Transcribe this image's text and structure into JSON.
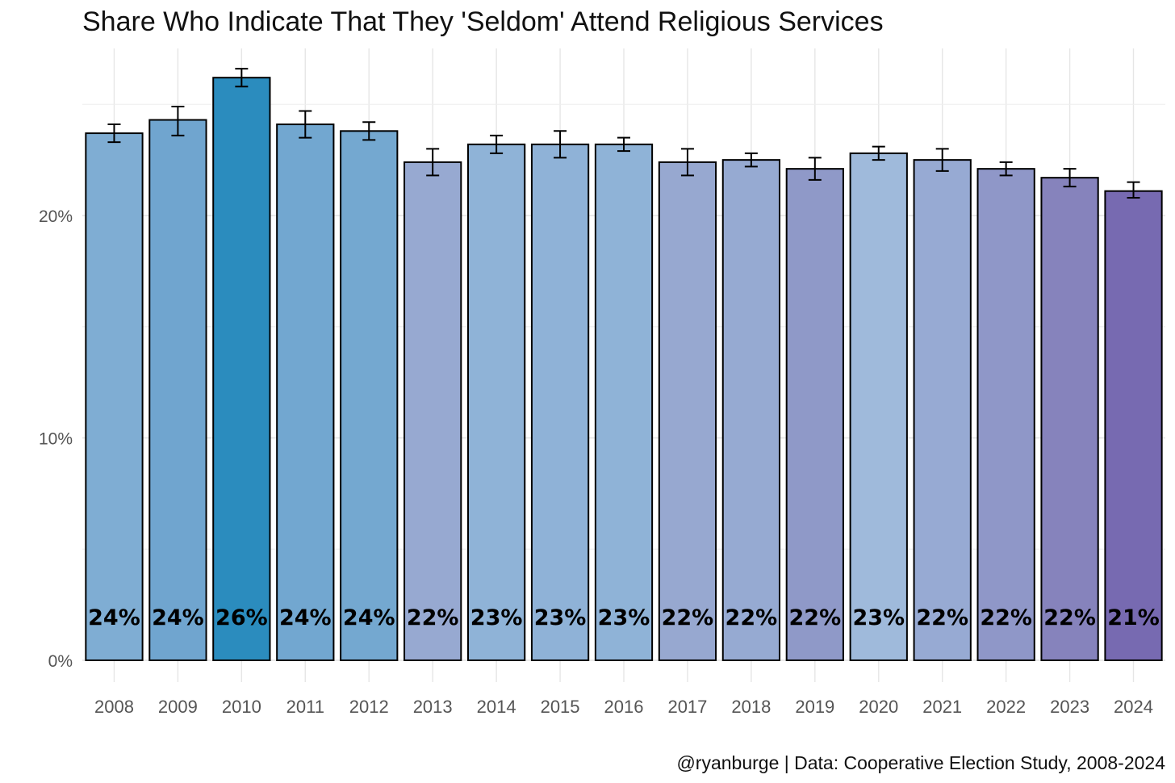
{
  "chart_data": {
    "type": "bar",
    "title": "Share Who Indicate That They 'Seldom' Attend Religious Services",
    "caption": "@ryanburge | Data: Cooperative Election Study, 2008-2024",
    "xlabel": "",
    "ylabel": "",
    "ylim": [
      0,
      27.5
    ],
    "yticks": [
      {
        "value": 0,
        "label": "0%"
      },
      {
        "value": 10,
        "label": "10%"
      },
      {
        "value": 20,
        "label": "20%"
      }
    ],
    "categories": [
      "2008",
      "2009",
      "2010",
      "2011",
      "2012",
      "2013",
      "2014",
      "2015",
      "2016",
      "2017",
      "2018",
      "2019",
      "2020",
      "2021",
      "2022",
      "2023",
      "2024"
    ],
    "values": [
      23.7,
      24.3,
      26.2,
      24.1,
      23.8,
      22.4,
      23.2,
      23.2,
      23.2,
      22.4,
      22.5,
      22.1,
      22.8,
      22.5,
      22.1,
      21.7,
      21.1
    ],
    "ci_low": [
      23.3,
      23.6,
      25.8,
      23.5,
      23.4,
      21.8,
      22.8,
      22.6,
      22.9,
      21.8,
      22.2,
      21.6,
      22.5,
      22.0,
      21.8,
      21.3,
      20.8
    ],
    "ci_high": [
      24.1,
      24.9,
      26.6,
      24.7,
      24.2,
      23.0,
      23.6,
      23.8,
      23.5,
      23.0,
      22.8,
      22.6,
      23.1,
      23.0,
      22.4,
      22.1,
      21.5
    ],
    "labels": [
      "24%",
      "24%",
      "26%",
      "24%",
      "24%",
      "22%",
      "23%",
      "23%",
      "23%",
      "22%",
      "22%",
      "22%",
      "23%",
      "22%",
      "22%",
      "22%",
      "21%"
    ],
    "colors": [
      "#7fadd3",
      "#70a5cf",
      "#2b8cbe",
      "#72a7d0",
      "#74a8d0",
      "#97a9d1",
      "#8fb3d7",
      "#8fb2d7",
      "#8fb3d7",
      "#97a8d0",
      "#96aad2",
      "#8f99c8",
      "#9fbadb",
      "#97aad3",
      "#8f97c8",
      "#8683bc",
      "#776ab1"
    ],
    "grid": true,
    "legend": "none"
  }
}
